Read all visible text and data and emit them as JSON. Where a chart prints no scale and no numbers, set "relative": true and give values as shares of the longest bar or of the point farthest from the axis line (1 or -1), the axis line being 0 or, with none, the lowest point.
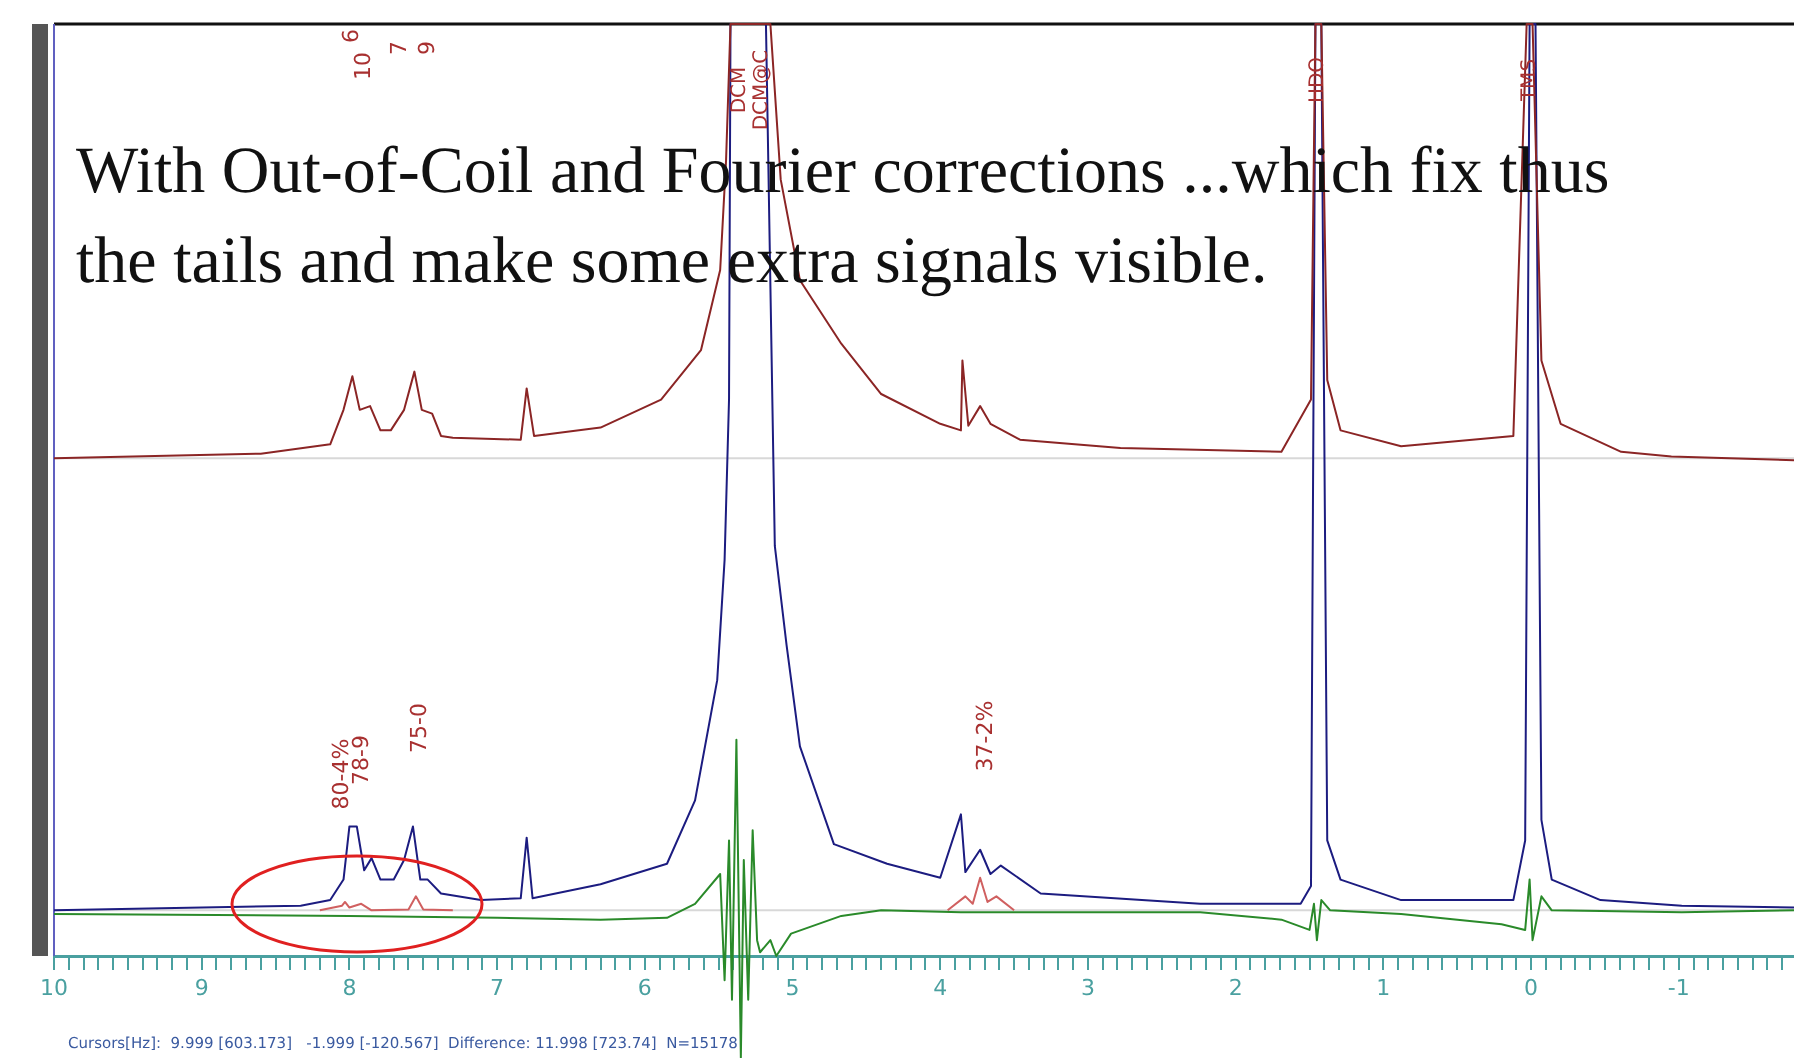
{
  "chart_data": {
    "type": "line",
    "relative": true,
    "legend": false,
    "grid": false,
    "marker": "none",
    "line_style": "solid",
    "tick_labels": "x",
    "title": "With Out-of-Coil and Fourier corrections  ...which fix thus the tails and make some extra signals visible.",
    "xlim": [
      10,
      -1.78
    ],
    "xticks": [
      10,
      {
        "value": 9.9,
        "label": null
      },
      {
        "value": 9.8,
        "label": null
      },
      {
        "value": 9.7,
        "label": null
      },
      {
        "value": 9.6,
        "label": null
      },
      {
        "value": 9.5,
        "label": null
      },
      {
        "value": 9.4,
        "label": null
      },
      {
        "value": 9.3,
        "label": null
      },
      {
        "value": 9.2,
        "label": null
      },
      {
        "value": 9.1,
        "label": null
      },
      9,
      {
        "value": 8.9,
        "label": null
      },
      {
        "value": 8.8,
        "label": null
      },
      {
        "value": 8.7,
        "label": null
      },
      {
        "value": 8.6,
        "label": null
      },
      {
        "value": 8.5,
        "label": null
      },
      {
        "value": 8.4,
        "label": null
      },
      {
        "value": 8.3,
        "label": null
      },
      {
        "value": 8.2,
        "label": null
      },
      {
        "value": 8.1,
        "label": null
      },
      8,
      {
        "value": 7.9,
        "label": null
      },
      {
        "value": 7.8,
        "label": null
      },
      {
        "value": 7.7,
        "label": null
      },
      {
        "value": 7.6,
        "label": null
      },
      {
        "value": 7.5,
        "label": null
      },
      {
        "value": 7.4,
        "label": null
      },
      {
        "value": 7.3,
        "label": null
      },
      {
        "value": 7.2,
        "label": null
      },
      {
        "value": 7.1,
        "label": null
      },
      7,
      {
        "value": 6.9,
        "label": null
      },
      {
        "value": 6.8,
        "label": null
      },
      {
        "value": 6.7,
        "label": null
      },
      {
        "value": 6.6,
        "label": null
      },
      {
        "value": 6.5,
        "label": null
      },
      {
        "value": 6.4,
        "label": null
      },
      {
        "value": 6.3,
        "label": null
      },
      {
        "value": 6.2,
        "label": null
      },
      {
        "value": 6.1,
        "label": null
      },
      6,
      {
        "value": 5.9,
        "label": null
      },
      {
        "value": 5.8,
        "label": null
      },
      {
        "value": 5.7,
        "label": null
      },
      {
        "value": 5.6,
        "label": null
      },
      {
        "value": 5.5,
        "label": null
      },
      {
        "value": 5.4,
        "label": null
      },
      {
        "value": 5.3,
        "label": null
      },
      {
        "value": 5.2,
        "label": null
      },
      {
        "value": 5.1,
        "label": null
      },
      5,
      {
        "value": 4.9,
        "label": null
      },
      {
        "value": 4.8,
        "label": null
      },
      {
        "value": 4.7,
        "label": null
      },
      {
        "value": 4.6,
        "label": null
      },
      {
        "value": 4.5,
        "label": null
      },
      {
        "value": 4.4,
        "label": null
      },
      {
        "value": 4.3,
        "label": null
      },
      {
        "value": 4.2,
        "label": null
      },
      {
        "value": 4.1,
        "label": null
      },
      4,
      {
        "value": 3.9,
        "label": null
      },
      {
        "value": 3.8,
        "label": null
      },
      {
        "value": 3.7,
        "label": null
      },
      {
        "value": 3.6,
        "label": null
      },
      {
        "value": 3.5,
        "label": null
      },
      {
        "value": 3.4,
        "label": null
      },
      {
        "value": 3.3,
        "label": null
      },
      {
        "value": 3.2,
        "label": null
      },
      {
        "value": 3.1,
        "label": null
      },
      3,
      {
        "value": 2.9,
        "label": null
      },
      {
        "value": 2.8,
        "label": null
      },
      {
        "value": 2.7,
        "label": null
      },
      {
        "value": 2.6,
        "label": null
      },
      {
        "value": 2.5,
        "label": null
      },
      {
        "value": 2.4,
        "label": null
      },
      {
        "value": 2.3,
        "label": null
      },
      {
        "value": 2.2,
        "label": null
      },
      {
        "value": 2.1,
        "label": null
      },
      2,
      {
        "value": 1.9,
        "label": null
      },
      {
        "value": 1.8,
        "label": null
      },
      {
        "value": 1.7,
        "label": null
      },
      {
        "value": 1.6,
        "label": null
      },
      {
        "value": 1.5,
        "label": null
      },
      {
        "value": 1.4,
        "label": null
      },
      {
        "value": 1.3,
        "label": null
      },
      {
        "value": 1.2,
        "label": null
      },
      {
        "value": 1.1,
        "label": null
      },
      1,
      {
        "value": 0.9,
        "label": null
      },
      {
        "value": 0.8,
        "label": null
      },
      {
        "value": 0.7,
        "label": null
      },
      {
        "value": 0.6,
        "label": null
      },
      {
        "value": 0.5,
        "label": null
      },
      {
        "value": 0.4,
        "label": null
      },
      {
        "value": 0.3,
        "label": null
      },
      {
        "value": 0.2,
        "label": null
      },
      {
        "value": 0.1,
        "label": null
      },
      0,
      {
        "value": -0.1,
        "label": null
      },
      {
        "value": -0.2,
        "label": null
      },
      {
        "value": -0.3,
        "label": null
      },
      {
        "value": -0.4,
        "label": null
      },
      {
        "value": -0.5,
        "label": null
      },
      {
        "value": -0.6,
        "label": null
      },
      {
        "value": -0.7,
        "label": null
      },
      {
        "value": -0.8,
        "label": null
      },
      {
        "value": -0.9,
        "label": null
      },
      -1,
      {
        "value": -1.1,
        "label": null
      },
      {
        "value": -1.2,
        "label": null
      },
      {
        "value": -1.3,
        "label": null
      },
      {
        "value": -1.4,
        "label": null
      },
      {
        "value": -1.5,
        "label": null
      },
      {
        "value": -1.6,
        "label": null
      },
      {
        "value": -1.7,
        "label": null
      }
    ],
    "ref_lines": [
      {
        "axis": "y",
        "value": 0.534,
        "color": "#d8d8d8"
      },
      {
        "axis": "y",
        "value": 0.049,
        "color": "#d8d8d8"
      }
    ],
    "series": [
      {
        "type": "line",
        "color": "#8b2525",
        "x": [
          10,
          8.6,
          8.13,
          8.04,
          7.98,
          7.93,
          7.86,
          7.79,
          7.72,
          7.63,
          7.56,
          7.51,
          7.44,
          7.38,
          7.3,
          6.84,
          6.8,
          6.75,
          6.3,
          5.89,
          5.62,
          5.49,
          5.45,
          5.42,
          5.15,
          5.08,
          4.95,
          4.67,
          4.4,
          4.0,
          3.86,
          3.85,
          3.81,
          3.73,
          3.66,
          3.46,
          2.78,
          1.69,
          1.49,
          1.46,
          1.42,
          1.38,
          1.29,
          0.88,
          0.12,
          0.03,
          -0.01,
          -0.07,
          -0.2,
          -0.61,
          -0.95,
          -1.78
        ],
        "values": [
          0.534,
          0.539,
          0.549,
          0.586,
          0.622,
          0.586,
          0.59,
          0.564,
          0.564,
          0.586,
          0.627,
          0.586,
          0.582,
          0.558,
          0.556,
          0.554,
          0.609,
          0.558,
          0.567,
          0.597,
          0.65,
          0.736,
          0.854,
          1,
          1,
          0.833,
          0.725,
          0.657,
          0.603,
          0.571,
          0.564,
          0.639,
          0.569,
          0.59,
          0.571,
          0.554,
          0.545,
          0.541,
          0.597,
          1,
          1,
          0.618,
          0.564,
          0.547,
          0.558,
          1,
          1,
          0.639,
          0.571,
          0.541,
          0.536,
          0.532
        ]
      },
      {
        "type": "line",
        "color": "#1c1c80",
        "x": [
          10,
          8.33,
          8.13,
          8.04,
          8.0,
          7.95,
          7.9,
          7.85,
          7.79,
          7.7,
          7.63,
          7.57,
          7.52,
          7.47,
          7.38,
          7.11,
          6.84,
          6.8,
          6.76,
          6.3,
          5.85,
          5.66,
          5.51,
          5.46,
          5.43,
          5.42,
          5.18,
          5.12,
          5.04,
          4.95,
          4.72,
          4.36,
          4.0,
          3.86,
          3.83,
          3.73,
          3.66,
          3.59,
          3.32,
          2.24,
          1.56,
          1.49,
          1.46,
          1.42,
          1.38,
          1.29,
          0.88,
          0.12,
          0.04,
          0.01,
          -0.03,
          -0.07,
          -0.14,
          -0.47,
          -1.02,
          -1.78
        ],
        "values": [
          0.049,
          0.054,
          0.06,
          0.082,
          0.139,
          0.139,
          0.092,
          0.105,
          0.082,
          0.082,
          0.103,
          0.139,
          0.082,
          0.082,
          0.067,
          0.06,
          0.062,
          0.127,
          0.062,
          0.077,
          0.099,
          0.167,
          0.296,
          0.425,
          0.597,
          1,
          1,
          0.44,
          0.333,
          0.225,
          0.12,
          0.099,
          0.084,
          0.152,
          0.09,
          0.114,
          0.088,
          0.097,
          0.067,
          0.056,
          0.056,
          0.075,
          1,
          1,
          0.124,
          0.082,
          0.06,
          0.06,
          0.124,
          1,
          1,
          0.146,
          0.082,
          0.06,
          0.054,
          0.052
        ]
      },
      {
        "type": "line",
        "color": "#2a8a2a",
        "x": [
          10,
          8.0,
          7.0,
          6.3,
          5.85,
          5.66,
          5.49,
          5.46,
          5.43,
          5.41,
          5.38,
          5.35,
          5.33,
          5.3,
          5.27,
          5.24,
          5.22,
          5.15,
          5.11,
          5.01,
          4.67,
          4.4,
          3.86,
          3.32,
          2.24,
          1.69,
          1.5,
          1.47,
          1.45,
          1.42,
          1.36,
          0.88,
          0.2,
          0.04,
          0.01,
          -0.01,
          -0.07,
          -0.14,
          -1.02,
          -1.78
        ],
        "values": [
          0.045,
          0.043,
          0.041,
          0.039,
          0.041,
          0.056,
          0.088,
          -0.026,
          0.124,
          -0.047,
          0.232,
          -0.109,
          0.103,
          -0.047,
          0.135,
          0.017,
          0.004,
          0.017,
          0,
          0.024,
          0.043,
          0.049,
          0.047,
          0.047,
          0.047,
          0.039,
          0.028,
          0.056,
          0.017,
          0.06,
          0.049,
          0.045,
          0.034,
          0.028,
          0.082,
          0.017,
          0.064,
          0.049,
          0.047,
          0.049
        ]
      },
      {
        "type": "line",
        "color": "#d06060",
        "x": [
          8.2,
          8.05,
          8.03,
          8.0,
          7.92,
          7.85,
          7.6,
          7.55,
          7.5,
          7.3,
          5.0,
          3.95,
          3.83,
          3.78,
          3.73,
          3.68,
          3.62,
          3.5
        ],
        "values": [
          0.049,
          0.054,
          0.058,
          0.052,
          0.056,
          0.049,
          0.05,
          0.064,
          0.05,
          0.049,
          null,
          0.049,
          0.064,
          0.056,
          0.084,
          0.058,
          0.064,
          0.049
        ]
      }
    ],
    "annotations": [
      "10",
      "6",
      "7",
      "9",
      "DCM",
      "DCM@C",
      "HDO",
      "TMS",
      "80-4%",
      "78-9",
      "75-0",
      "37-2%",
      "Cursors[Hz]:  9.999 [603.173]   -1.999 [-120.567]  Difference: 11.998 [723.74]  N=15178"
    ]
  }
}
